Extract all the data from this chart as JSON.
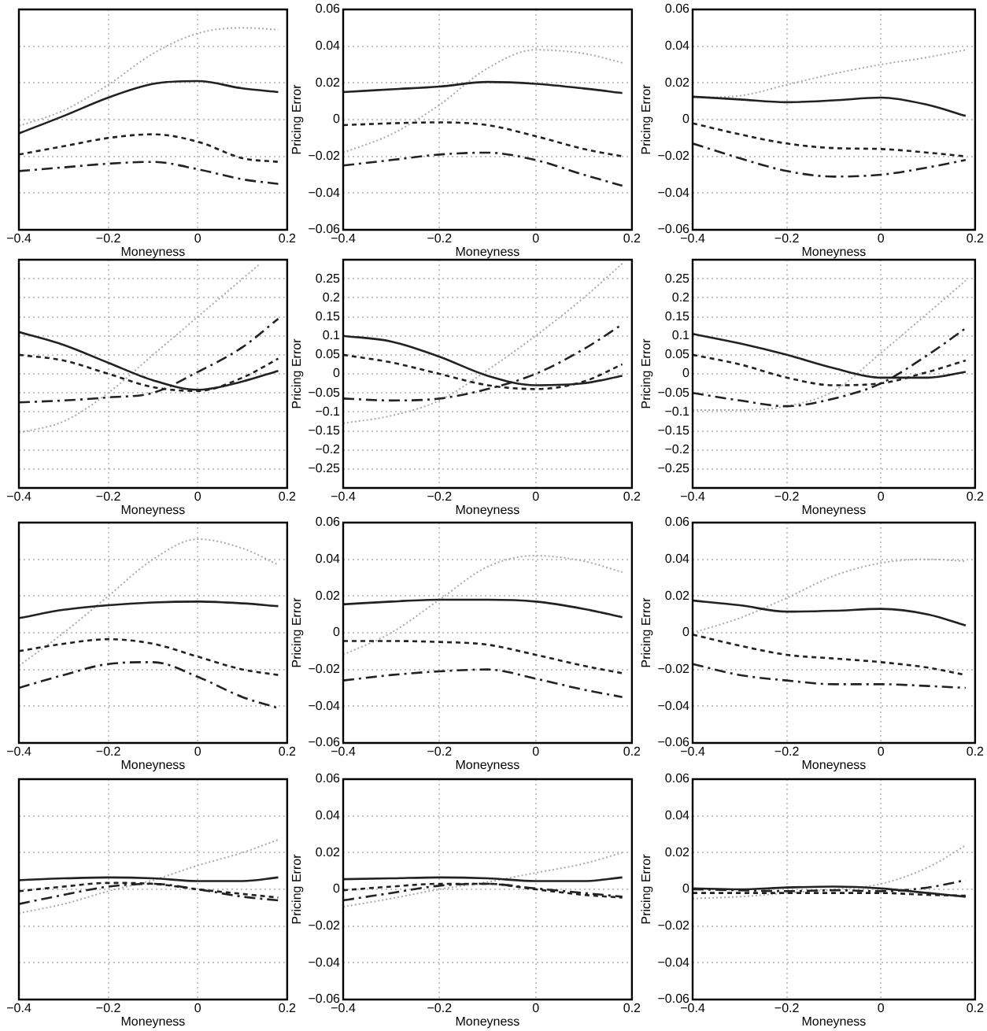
{
  "chart_data": [
    {
      "type": "line",
      "xlabel": "Moneyness",
      "tick_labels": "x",
      "grid": true,
      "x": [
        -0.4,
        -0.3,
        -0.2,
        -0.1,
        0,
        0.1,
        0.18
      ],
      "xlim": [
        -0.4,
        0.2
      ],
      "xticks": [
        -0.4,
        -0.2,
        0,
        0.2
      ],
      "ylim": [
        -0.06,
        0.06
      ],
      "yticks": [
        -0.06,
        -0.04,
        -0.02,
        0,
        0.02,
        0.04,
        0.06
      ],
      "series": [
        {
          "color": "#222222",
          "line_style": "solid",
          "values": [
            -0.0075,
            0.002,
            0.012,
            0.0195,
            0.021,
            0.017,
            0.015
          ]
        },
        {
          "color": "#222222",
          "line_style": "dashed",
          "values": [
            -0.019,
            -0.0145,
            -0.01,
            -0.008,
            -0.012,
            -0.021,
            -0.023
          ]
        },
        {
          "color": "#222222",
          "line_style": "dashdot",
          "values": [
            -0.028,
            -0.026,
            -0.024,
            -0.023,
            -0.027,
            -0.0325,
            -0.035
          ]
        },
        {
          "color": "#aaaaaa",
          "line_style": "dotted",
          "values": [
            -0.0035,
            0.005,
            0.019,
            0.036,
            0.047,
            0.05,
            0.049
          ]
        }
      ]
    },
    {
      "type": "line",
      "xlabel": "Moneyness",
      "ylabel": "Pricing Error",
      "grid": true,
      "x": [
        -0.4,
        -0.3,
        -0.2,
        -0.1,
        0,
        0.1,
        0.18
      ],
      "xlim": [
        -0.4,
        0.2
      ],
      "xticks": [
        -0.4,
        -0.2,
        0,
        0.2
      ],
      "ylim": [
        -0.06,
        0.06
      ],
      "yticks": [
        -0.06,
        -0.04,
        -0.02,
        0,
        0.02,
        0.04,
        0.06
      ],
      "series": [
        {
          "color": "#222222",
          "line_style": "solid",
          "values": [
            0.015,
            0.0165,
            0.018,
            0.0205,
            0.0195,
            0.017,
            0.0145
          ]
        },
        {
          "color": "#222222",
          "line_style": "dashed",
          "values": [
            -0.003,
            -0.002,
            -0.0015,
            -0.003,
            -0.009,
            -0.016,
            -0.02
          ]
        },
        {
          "color": "#222222",
          "line_style": "dashdot",
          "values": [
            -0.025,
            -0.022,
            -0.019,
            -0.018,
            -0.022,
            -0.03,
            -0.036
          ]
        },
        {
          "color": "#aaaaaa",
          "line_style": "dotted",
          "values": [
            -0.018,
            -0.008,
            0.008,
            0.028,
            0.038,
            0.036,
            0.031
          ]
        }
      ]
    },
    {
      "type": "line",
      "xlabel": "Moneyness",
      "ylabel": "Pricing Error",
      "grid": true,
      "x": [
        -0.4,
        -0.3,
        -0.2,
        -0.1,
        0,
        0.1,
        0.18
      ],
      "xlim": [
        -0.4,
        0.2
      ],
      "xticks": [
        -0.4,
        -0.2,
        0,
        0.2
      ],
      "ylim": [
        -0.06,
        0.06
      ],
      "yticks": [
        -0.06,
        -0.04,
        -0.02,
        0,
        0.02,
        0.04,
        0.06
      ],
      "series": [
        {
          "color": "#222222",
          "line_style": "solid",
          "values": [
            0.0125,
            0.011,
            0.0095,
            0.0105,
            0.012,
            0.008,
            0.002
          ]
        },
        {
          "color": "#222222",
          "line_style": "dashed",
          "values": [
            -0.002,
            -0.008,
            -0.013,
            -0.0155,
            -0.016,
            -0.018,
            -0.02
          ]
        },
        {
          "color": "#222222",
          "line_style": "dashdot",
          "values": [
            -0.013,
            -0.021,
            -0.028,
            -0.031,
            -0.03,
            -0.026,
            -0.022
          ]
        },
        {
          "color": "#aaaaaa",
          "line_style": "dotted",
          "values": [
            0.012,
            0.013,
            0.019,
            0.025,
            0.03,
            0.034,
            0.038
          ]
        }
      ]
    },
    {
      "type": "line",
      "xlabel": "Moneyness",
      "tick_labels": "x",
      "grid": true,
      "x": [
        -0.4,
        -0.3,
        -0.2,
        -0.1,
        0,
        0.1,
        0.18
      ],
      "xlim": [
        -0.4,
        0.2
      ],
      "xticks": [
        -0.4,
        -0.2,
        0,
        0.2
      ],
      "ylim": [
        -0.3,
        0.3
      ],
      "yticks": [
        -0.25,
        -0.2,
        -0.15,
        -0.1,
        -0.05,
        0,
        0.05,
        0.1,
        0.15,
        0.2,
        0.25
      ],
      "series": [
        {
          "color": "#222222",
          "line_style": "solid",
          "values": [
            0.11,
            0.076,
            0.029,
            -0.017,
            -0.042,
            -0.02,
            0.008
          ]
        },
        {
          "color": "#222222",
          "line_style": "dashed",
          "values": [
            0.05,
            0.035,
            0,
            -0.035,
            -0.045,
            -0.01,
            0.04
          ]
        },
        {
          "color": "#222222",
          "line_style": "dashdot",
          "values": [
            -0.075,
            -0.07,
            -0.062,
            -0.05,
            0.005,
            0.07,
            0.145
          ]
        },
        {
          "color": "#aaaaaa",
          "line_style": "dotted",
          "x": [
            -0.4,
            -0.3,
            -0.2,
            -0.1,
            0,
            0.1,
            0.14
          ],
          "values": [
            -0.155,
            -0.125,
            -0.05,
            0.05,
            0.15,
            0.25,
            0.29
          ]
        }
      ]
    },
    {
      "type": "line",
      "xlabel": "Moneyness",
      "ylabel": "Pricing Error",
      "grid": true,
      "x": [
        -0.4,
        -0.3,
        -0.2,
        -0.1,
        0,
        0.1,
        0.18
      ],
      "xlim": [
        -0.4,
        0.2
      ],
      "xticks": [
        -0.4,
        -0.2,
        0,
        0.2
      ],
      "ylim": [
        -0.3,
        0.3
      ],
      "yticks": [
        -0.25,
        -0.2,
        -0.15,
        -0.1,
        -0.05,
        0,
        0.05,
        0.1,
        0.15,
        0.2,
        0.25
      ],
      "series": [
        {
          "color": "#222222",
          "line_style": "solid",
          "values": [
            0.1,
            0.085,
            0.045,
            -0.005,
            -0.03,
            -0.025,
            -0.005
          ]
        },
        {
          "color": "#222222",
          "line_style": "dashed",
          "values": [
            0.05,
            0.03,
            0,
            -0.03,
            -0.04,
            -0.02,
            0.025
          ]
        },
        {
          "color": "#222222",
          "line_style": "dashdot",
          "values": [
            -0.065,
            -0.07,
            -0.065,
            -0.04,
            0,
            0.065,
            0.13
          ]
        },
        {
          "color": "#aaaaaa",
          "line_style": "dotted",
          "values": [
            -0.13,
            -0.11,
            -0.07,
            0.01,
            0.1,
            0.2,
            0.29
          ]
        }
      ]
    },
    {
      "type": "line",
      "xlabel": "Moneyness",
      "ylabel": "Pricing Error",
      "grid": true,
      "x": [
        -0.4,
        -0.3,
        -0.2,
        -0.1,
        0,
        0.1,
        0.18
      ],
      "xlim": [
        -0.4,
        0.2
      ],
      "xticks": [
        -0.4,
        -0.2,
        0,
        0.2
      ],
      "ylim": [
        -0.3,
        0.3
      ],
      "yticks": [
        -0.25,
        -0.2,
        -0.15,
        -0.1,
        -0.05,
        0,
        0.05,
        0.1,
        0.15,
        0.2,
        0.25
      ],
      "series": [
        {
          "color": "#222222",
          "line_style": "solid",
          "values": [
            0.105,
            0.08,
            0.05,
            0.015,
            -0.01,
            -0.01,
            0.005
          ]
        },
        {
          "color": "#222222",
          "line_style": "dashed",
          "values": [
            0.05,
            0.025,
            -0.01,
            -0.03,
            -0.025,
            0.005,
            0.035
          ]
        },
        {
          "color": "#222222",
          "line_style": "dashdot",
          "values": [
            -0.05,
            -0.07,
            -0.085,
            -0.065,
            -0.025,
            0.05,
            0.12
          ]
        },
        {
          "color": "#aaaaaa",
          "line_style": "dotted",
          "values": [
            -0.095,
            -0.095,
            -0.085,
            -0.045,
            0.055,
            0.16,
            0.245
          ]
        }
      ]
    },
    {
      "type": "line",
      "xlabel": "Moneyness",
      "tick_labels": "x",
      "grid": true,
      "x": [
        -0.4,
        -0.3,
        -0.2,
        -0.1,
        0,
        0.1,
        0.18
      ],
      "xlim": [
        -0.4,
        0.2
      ],
      "xticks": [
        -0.4,
        -0.2,
        0,
        0.2
      ],
      "ylim": [
        -0.06,
        0.06
      ],
      "yticks": [
        -0.06,
        -0.04,
        -0.02,
        0,
        0.02,
        0.04,
        0.06
      ],
      "series": [
        {
          "color": "#222222",
          "line_style": "solid",
          "values": [
            0.008,
            0.0125,
            0.015,
            0.0165,
            0.017,
            0.016,
            0.0145
          ]
        },
        {
          "color": "#222222",
          "line_style": "dashed",
          "values": [
            -0.01,
            -0.006,
            -0.0035,
            -0.006,
            -0.013,
            -0.02,
            -0.023
          ]
        },
        {
          "color": "#222222",
          "line_style": "dashdot",
          "values": [
            -0.03,
            -0.023,
            -0.017,
            -0.016,
            -0.024,
            -0.035,
            -0.041
          ]
        },
        {
          "color": "#aaaaaa",
          "line_style": "dotted",
          "values": [
            -0.018,
            0,
            0.02,
            0.04,
            0.051,
            0.046,
            0.037
          ]
        }
      ]
    },
    {
      "type": "line",
      "xlabel": "Moneyness",
      "ylabel": "Pricing Error",
      "grid": true,
      "x": [
        -0.4,
        -0.3,
        -0.2,
        -0.1,
        0,
        0.1,
        0.18
      ],
      "xlim": [
        -0.4,
        0.2
      ],
      "xticks": [
        -0.4,
        -0.2,
        0,
        0.2
      ],
      "ylim": [
        -0.06,
        0.06
      ],
      "yticks": [
        -0.06,
        -0.04,
        -0.02,
        0,
        0.02,
        0.04,
        0.06
      ],
      "series": [
        {
          "color": "#222222",
          "line_style": "solid",
          "values": [
            0.0155,
            0.017,
            0.018,
            0.018,
            0.017,
            0.013,
            0.0085
          ]
        },
        {
          "color": "#222222",
          "line_style": "dashed",
          "values": [
            -0.0045,
            -0.0045,
            -0.005,
            -0.0065,
            -0.012,
            -0.018,
            -0.022
          ]
        },
        {
          "color": "#222222",
          "line_style": "dashdot",
          "values": [
            -0.026,
            -0.023,
            -0.021,
            -0.02,
            -0.025,
            -0.031,
            -0.035
          ]
        },
        {
          "color": "#aaaaaa",
          "line_style": "dotted",
          "values": [
            -0.012,
            0,
            0.018,
            0.036,
            0.042,
            0.039,
            0.033
          ]
        }
      ]
    },
    {
      "type": "line",
      "xlabel": "Moneyness",
      "ylabel": "Pricing Error",
      "grid": true,
      "x": [
        -0.4,
        -0.3,
        -0.2,
        -0.1,
        0,
        0.1,
        0.18
      ],
      "xlim": [
        -0.4,
        0.2
      ],
      "xticks": [
        -0.4,
        -0.2,
        0,
        0.2
      ],
      "ylim": [
        -0.06,
        0.06
      ],
      "yticks": [
        -0.06,
        -0.04,
        -0.02,
        0,
        0.02,
        0.04,
        0.06
      ],
      "series": [
        {
          "color": "#222222",
          "line_style": "solid",
          "values": [
            0.0175,
            0.015,
            0.0115,
            0.012,
            0.013,
            0.01,
            0.004
          ]
        },
        {
          "color": "#222222",
          "line_style": "dashed",
          "values": [
            -0.001,
            -0.007,
            -0.012,
            -0.014,
            -0.016,
            -0.019,
            -0.023
          ]
        },
        {
          "color": "#222222",
          "line_style": "dashdot",
          "values": [
            -0.017,
            -0.023,
            -0.026,
            -0.028,
            -0.028,
            -0.029,
            -0.03
          ]
        },
        {
          "color": "#aaaaaa",
          "line_style": "dotted",
          "values": [
            0,
            0.008,
            0.019,
            0.031,
            0.038,
            0.04,
            0.039
          ]
        }
      ]
    },
    {
      "type": "line",
      "xlabel": "Moneyness",
      "tick_labels": "x",
      "grid": true,
      "x": [
        -0.4,
        -0.3,
        -0.2,
        -0.1,
        0,
        0.1,
        0.18
      ],
      "xlim": [
        -0.4,
        0.2
      ],
      "xticks": [
        -0.4,
        -0.2,
        0,
        0.2
      ],
      "ylim": [
        -0.06,
        0.06
      ],
      "yticks": [
        -0.06,
        -0.04,
        -0.02,
        0,
        0.02,
        0.04,
        0.06
      ],
      "series": [
        {
          "color": "#222222",
          "line_style": "solid",
          "values": [
            0.005,
            0.006,
            0.0065,
            0.006,
            0.0045,
            0.0045,
            0.0065
          ]
        },
        {
          "color": "#222222",
          "line_style": "dashed",
          "values": [
            -0.001,
            0.0015,
            0.0035,
            0.003,
            0,
            -0.0025,
            -0.0045
          ]
        },
        {
          "color": "#222222",
          "line_style": "dashdot",
          "values": [
            -0.008,
            -0.003,
            0.0015,
            0.003,
            0,
            -0.004,
            -0.006
          ]
        },
        {
          "color": "#aaaaaa",
          "line_style": "dotted",
          "values": [
            -0.013,
            -0.008,
            -0.001,
            0.005,
            0.013,
            0.02,
            0.027
          ]
        }
      ]
    },
    {
      "type": "line",
      "xlabel": "Moneyness",
      "ylabel": "Pricing Error",
      "grid": true,
      "x": [
        -0.4,
        -0.3,
        -0.2,
        -0.1,
        0,
        0.1,
        0.18
      ],
      "xlim": [
        -0.4,
        0.2
      ],
      "xticks": [
        -0.4,
        -0.2,
        0,
        0.2
      ],
      "ylim": [
        -0.06,
        0.06
      ],
      "yticks": [
        -0.06,
        -0.04,
        -0.02,
        0,
        0.02,
        0.04,
        0.06
      ],
      "series": [
        {
          "color": "#222222",
          "line_style": "solid",
          "values": [
            0.0055,
            0.006,
            0.0065,
            0.006,
            0.0045,
            0.0045,
            0.0065
          ]
        },
        {
          "color": "#222222",
          "line_style": "dashed",
          "values": [
            -0.0005,
            0.0015,
            0.003,
            0.003,
            0,
            -0.003,
            -0.0045
          ]
        },
        {
          "color": "#222222",
          "line_style": "dashdot",
          "values": [
            -0.006,
            -0.002,
            0.002,
            0.003,
            0.0005,
            -0.002,
            -0.004
          ]
        },
        {
          "color": "#aaaaaa",
          "line_style": "dotted",
          "values": [
            -0.0095,
            -0.005,
            0,
            0.004,
            0.009,
            0.014,
            0.02
          ]
        }
      ]
    },
    {
      "type": "line",
      "xlabel": "Moneyness",
      "ylabel": "Pricing Error",
      "grid": true,
      "x": [
        -0.4,
        -0.3,
        -0.2,
        -0.1,
        0,
        0.1,
        0.18
      ],
      "xlim": [
        -0.4,
        0.2
      ],
      "xticks": [
        -0.4,
        -0.2,
        0,
        0.2
      ],
      "ylim": [
        -0.06,
        0.06
      ],
      "yticks": [
        -0.06,
        -0.04,
        -0.02,
        0,
        0.02,
        0.04,
        0.06
      ],
      "series": [
        {
          "color": "#222222",
          "line_style": "solid",
          "values": [
            0.0005,
            0,
            0.001,
            0.0015,
            0.0005,
            -0.002,
            -0.004
          ]
        },
        {
          "color": "#222222",
          "line_style": "dashed",
          "values": [
            -0.002,
            -0.002,
            -0.002,
            -0.002,
            -0.002,
            -0.003,
            -0.0035
          ]
        },
        {
          "color": "#222222",
          "line_style": "dashdot",
          "values": [
            0,
            -0.0005,
            -0.001,
            -0.0005,
            -0.001,
            0.001,
            0.005
          ]
        },
        {
          "color": "#aaaaaa",
          "line_style": "dotted",
          "values": [
            -0.005,
            -0.004,
            -0.002,
            0,
            0.003,
            0.012,
            0.024
          ]
        }
      ]
    }
  ]
}
